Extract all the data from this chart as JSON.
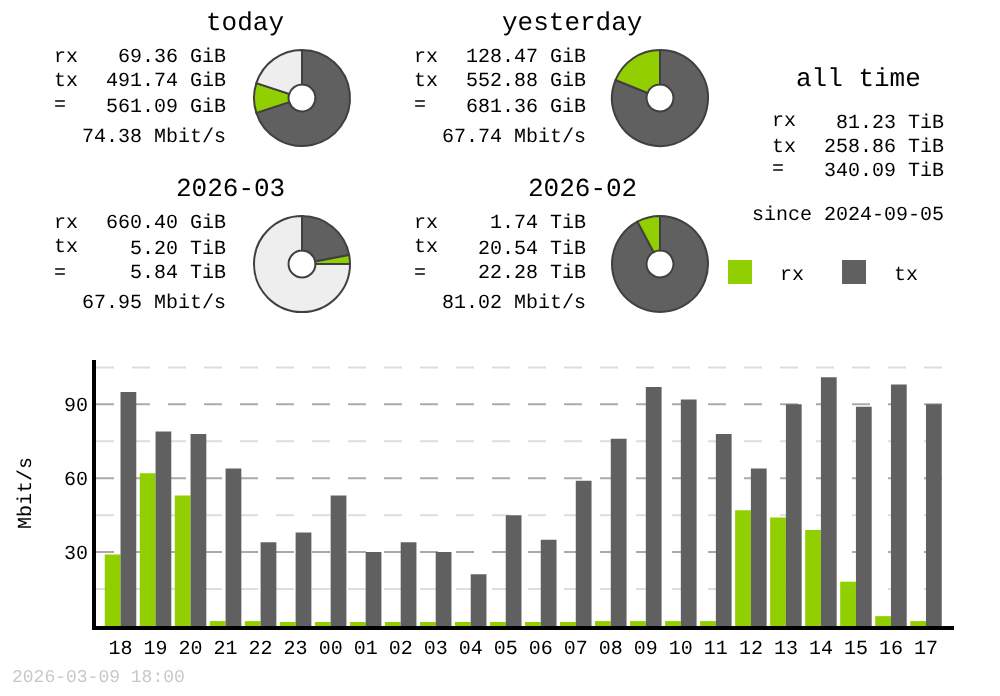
{
  "chart_data": [
    {
      "type": "donut",
      "title": "today",
      "categories": [
        null,
        null,
        null
      ],
      "values": [
        70,
        10,
        20
      ],
      "colors": [
        "#606060",
        "#92cf00",
        "#eeeeee"
      ],
      "annotations": [
        "rx 69.36 GiB",
        "tx 491.74 GiB",
        "= 561.09 GiB",
        "74.38 Mbit/s"
      ]
    },
    {
      "type": "donut",
      "title": "yesterday",
      "categories": [
        null,
        null
      ],
      "values": [
        81.1,
        18.9
      ],
      "colors": [
        "#606060",
        "#92cf00"
      ],
      "annotations": [
        "rx 128.47 GiB",
        "tx 552.88 GiB",
        "= 681.36 GiB",
        "67.74 Mbit/s"
      ]
    },
    {
      "type": "donut",
      "title": "2026-03",
      "categories": [
        null,
        null,
        null
      ],
      "values": [
        22,
        3,
        75
      ],
      "colors": [
        "#606060",
        "#92cf00",
        "#eeeeee"
      ],
      "annotations": [
        "rx 660.40 GiB",
        "tx 5.20 TiB",
        "= 5.84 TiB",
        "67.95 Mbit/s"
      ]
    },
    {
      "type": "donut",
      "title": "2026-02",
      "categories": [
        null,
        null
      ],
      "values": [
        92.2,
        7.8
      ],
      "colors": [
        "#606060",
        "#92cf00"
      ],
      "annotations": [
        "rx 1.74 TiB",
        "tx 20.54 TiB",
        "= 22.28 TiB",
        "81.02 Mbit/s"
      ]
    },
    {
      "type": "other",
      "title": "all time",
      "annotations": [
        "rx 81.23 TiB",
        "tx 258.86 TiB",
        "= 340.09 TiB",
        "since 2024-09-05"
      ]
    },
    {
      "type": "bar",
      "ylabel": "Mbit/s",
      "categories": [
        "18",
        "19",
        "20",
        "21",
        "22",
        "23",
        "00",
        "01",
        "02",
        "03",
        "04",
        "05",
        "06",
        "07",
        "08",
        "09",
        "10",
        "11",
        "12",
        "13",
        "14",
        "15",
        "16",
        "17"
      ],
      "series": [
        {
          "name": "rx",
          "color": "#92cf00",
          "values": [
            29,
            62,
            53,
            2,
            2,
            1,
            1,
            1,
            1,
            1,
            1,
            1,
            1,
            1,
            2,
            2,
            2,
            2,
            47,
            44,
            39,
            18,
            4,
            2
          ]
        },
        {
          "name": "tx",
          "color": "#606060",
          "values": [
            95,
            79,
            78,
            64,
            34,
            38,
            53,
            30,
            34,
            30,
            21,
            45,
            35,
            59,
            76,
            97,
            92,
            78,
            64,
            90,
            101,
            89,
            98,
            90
          ]
        }
      ],
      "ylim": [
        0,
        108
      ],
      "yticks": [
        {
          "value": 15,
          "label": null
        },
        30,
        {
          "value": 45,
          "label": null
        },
        60,
        {
          "value": 75,
          "label": null
        },
        90,
        {
          "value": 105,
          "label": null
        }
      ],
      "grid": "y",
      "legend": "top right",
      "annotations": [
        "2026-03-09 18:00"
      ]
    }
  ]
}
